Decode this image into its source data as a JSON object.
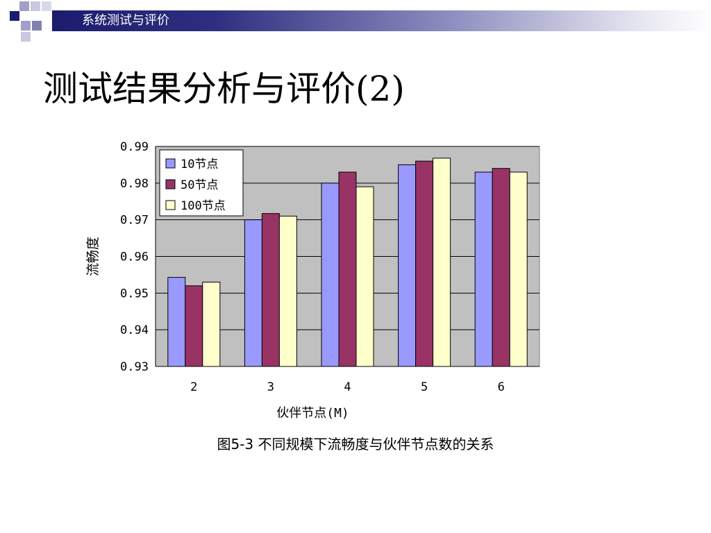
{
  "header": {
    "title": "系统测试与评价"
  },
  "page_title": "测试结果分析与评价(2)",
  "caption": "图5-3 不同规模下流畅度与伙伴节点数的关系",
  "chart_data": {
    "type": "bar",
    "categories": [
      "2",
      "3",
      "4",
      "5",
      "6"
    ],
    "series": [
      {
        "name": "10节点",
        "values": [
          0.9543,
          0.97,
          0.98,
          0.985,
          0.983
        ],
        "color": "#9999ff"
      },
      {
        "name": "50节点",
        "values": [
          0.952,
          0.9717,
          0.983,
          0.986,
          0.984
        ],
        "color": "#993366"
      },
      {
        "name": "100节点",
        "values": [
          0.953,
          0.971,
          0.979,
          0.9868,
          0.983
        ],
        "color": "#ffffcc"
      }
    ],
    "ylim": [
      0.93,
      0.99
    ],
    "yticks": [
      "0.99",
      "0.98",
      "0.97",
      "0.96",
      "0.95",
      "0.94",
      "0.93"
    ],
    "xlabel": "伙伴节点(M)",
    "ylabel": "流畅度",
    "grid": true,
    "legend_position": "top-left",
    "plot_background": "#c0c0c0"
  }
}
